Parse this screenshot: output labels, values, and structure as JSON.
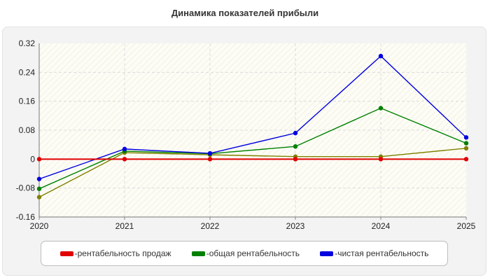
{
  "chart_data": {
    "type": "line",
    "title": "Динамика показателей прибыли",
    "x": [
      "2020",
      "2021",
      "2022",
      "2023",
      "2024",
      "2025"
    ],
    "ylim": [
      -0.16,
      0.32
    ],
    "yticks": [
      "-0.16",
      "-0.08",
      "0",
      "0.08",
      "0.16",
      "0.24",
      "0.32"
    ],
    "grid": true,
    "legend_position": "bottom",
    "series": [
      {
        "name": "рентабельность продаж",
        "color": "#e00000",
        "values": [
          0,
          0,
          0,
          0,
          0,
          0
        ]
      },
      {
        "name": "общая рентабельность",
        "color": "#008000",
        "values": [
          -0.082,
          0.022,
          0.015,
          0.035,
          0.141,
          0.044
        ]
      },
      {
        "name": "чистая рентабельность",
        "color": "#0000e0",
        "values": [
          -0.055,
          0.028,
          0.016,
          0.072,
          0.285,
          0.06
        ]
      },
      {
        "name": "",
        "color": "#808000",
        "values": [
          -0.105,
          0.018,
          0.012,
          0.007,
          0.007,
          0.03
        ]
      }
    ]
  }
}
